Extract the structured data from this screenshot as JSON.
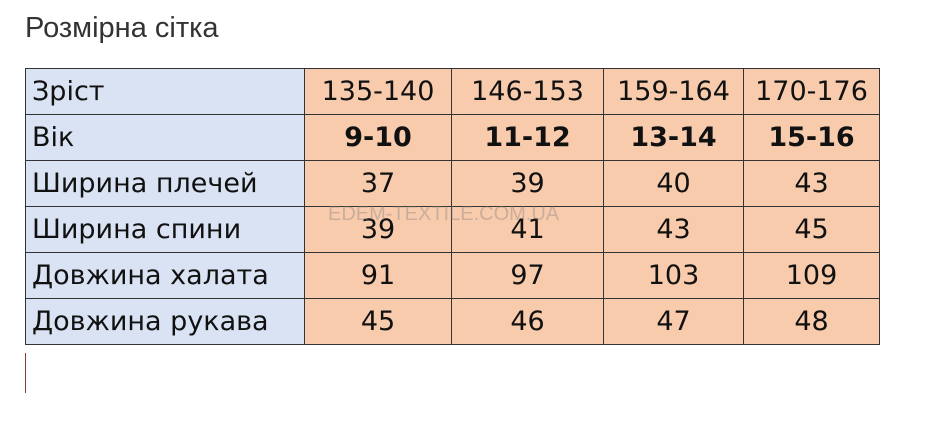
{
  "title": "Розмірна сітка",
  "watermark": "EDEM-TEXTILE.COM.UA",
  "colors": {
    "label_bg": "#dae3f3",
    "value_bg": "#f8cbad"
  },
  "rows": [
    {
      "label": "Зріст",
      "values": [
        "135-140",
        "146-153",
        "159-164",
        "170-176"
      ]
    },
    {
      "label": "Вік",
      "values": [
        "9-10",
        "11-12",
        "13-14",
        "15-16"
      ]
    },
    {
      "label": "Ширина плечей",
      "values": [
        "37",
        "39",
        "40",
        "43"
      ]
    },
    {
      "label": "Ширина спини",
      "values": [
        "39",
        "41",
        "43",
        "45"
      ]
    },
    {
      "label": "Довжина халата",
      "values": [
        "91",
        "97",
        "103",
        "109"
      ]
    },
    {
      "label": "Довжина рукава",
      "values": [
        "45",
        "46",
        "47",
        "48"
      ]
    }
  ]
}
